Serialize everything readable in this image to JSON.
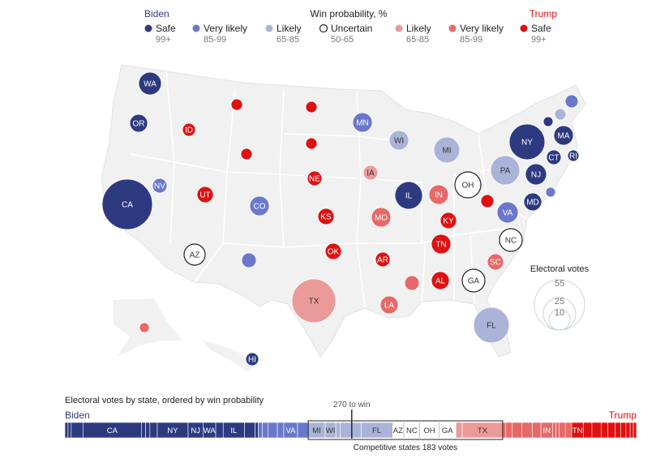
{
  "legend": {
    "biden_label": "Biden",
    "title": "Win probability, %",
    "trump_label": "Trump",
    "items": [
      {
        "label": "Safe",
        "range": "99+",
        "cat": "safe_b"
      },
      {
        "label": "Very likely",
        "range": "85-99",
        "cat": "vlikely_b"
      },
      {
        "label": "Likely",
        "range": "65-85",
        "cat": "likely_b"
      },
      {
        "label": "Uncertain",
        "range": "50-65",
        "cat": "uncertain"
      },
      {
        "label": "Likely",
        "range": "65-85",
        "cat": "likely_t"
      },
      {
        "label": "Very likely",
        "range": "85-99",
        "cat": "vlikely_t"
      },
      {
        "label": "Safe",
        "range": "99+",
        "cat": "safe_t"
      }
    ]
  },
  "colors": {
    "safe_b": "#2e3a80",
    "vlikely_b": "#6a78cc",
    "likely_b": "#aab4d8",
    "uncertain": "#ffffff",
    "likely_t": "#eb9a9a",
    "vlikely_t": "#e86868",
    "safe_t": "#e01010",
    "biden_text": "#2e3a80",
    "trump_text": "#e01010",
    "map_fill": "#f1f1f1"
  },
  "size_legend": {
    "title": "Electoral votes",
    "values": [
      "55",
      "25",
      "10"
    ]
  },
  "states": [
    {
      "abbr": "WA",
      "label": "WA",
      "cat": "safe_b"
    },
    {
      "abbr": "OR",
      "label": "OR",
      "cat": "safe_b"
    },
    {
      "abbr": "CA",
      "label": "CA",
      "cat": "safe_b"
    },
    {
      "abbr": "NV",
      "label": "NV",
      "cat": "vlikely_b"
    },
    {
      "abbr": "ID",
      "label": "ID",
      "cat": "safe_t"
    },
    {
      "abbr": "MT",
      "label": "",
      "cat": "safe_t"
    },
    {
      "abbr": "WY",
      "label": "",
      "cat": "safe_t"
    },
    {
      "abbr": "UT",
      "label": "UT",
      "cat": "safe_t"
    },
    {
      "abbr": "CO",
      "label": "CO",
      "cat": "vlikely_b"
    },
    {
      "abbr": "AZ",
      "label": "AZ",
      "cat": "uncertain"
    },
    {
      "abbr": "NM",
      "label": "",
      "cat": "vlikely_b"
    },
    {
      "abbr": "ND",
      "label": "",
      "cat": "safe_t"
    },
    {
      "abbr": "SD",
      "label": "",
      "cat": "safe_t"
    },
    {
      "abbr": "NE",
      "label": "NE",
      "cat": "safe_t"
    },
    {
      "abbr": "KS",
      "label": "KS",
      "cat": "safe_t"
    },
    {
      "abbr": "OK",
      "label": "OK",
      "cat": "safe_t"
    },
    {
      "abbr": "TX",
      "label": "TX",
      "cat": "likely_t"
    },
    {
      "abbr": "MN",
      "label": "MN",
      "cat": "vlikely_b"
    },
    {
      "abbr": "IA",
      "label": "IA",
      "cat": "likely_t"
    },
    {
      "abbr": "MO",
      "label": "MO",
      "cat": "vlikely_t"
    },
    {
      "abbr": "AR",
      "label": "AR",
      "cat": "safe_t"
    },
    {
      "abbr": "LA",
      "label": "LA",
      "cat": "vlikely_t"
    },
    {
      "abbr": "WI",
      "label": "WI",
      "cat": "likely_b"
    },
    {
      "abbr": "IL",
      "label": "IL",
      "cat": "safe_b"
    },
    {
      "abbr": "MI",
      "label": "MI",
      "cat": "likely_b"
    },
    {
      "abbr": "IN",
      "label": "IN",
      "cat": "vlikely_t"
    },
    {
      "abbr": "OH",
      "label": "OH",
      "cat": "uncertain"
    },
    {
      "abbr": "KY",
      "label": "KY",
      "cat": "safe_t"
    },
    {
      "abbr": "TN",
      "label": "TN",
      "cat": "safe_t"
    },
    {
      "abbr": "MS",
      "label": "",
      "cat": "vlikely_t"
    },
    {
      "abbr": "AL",
      "label": "AL",
      "cat": "safe_t"
    },
    {
      "abbr": "GA",
      "label": "GA",
      "cat": "uncertain"
    },
    {
      "abbr": "FL",
      "label": "FL",
      "cat": "likely_b"
    },
    {
      "abbr": "SC",
      "label": "SC",
      "cat": "vlikely_t"
    },
    {
      "abbr": "NC",
      "label": "NC",
      "cat": "uncertain"
    },
    {
      "abbr": "WV",
      "label": "",
      "cat": "safe_t"
    },
    {
      "abbr": "VA",
      "label": "VA",
      "cat": "vlikely_b"
    },
    {
      "abbr": "PA",
      "label": "PA",
      "cat": "likely_b"
    },
    {
      "abbr": "NY",
      "label": "NY",
      "cat": "safe_b"
    },
    {
      "abbr": "NJ",
      "label": "NJ",
      "cat": "safe_b"
    },
    {
      "abbr": "MD",
      "label": "MD",
      "cat": "safe_b"
    },
    {
      "abbr": "DE",
      "label": "",
      "cat": "vlikely_b"
    },
    {
      "abbr": "CT",
      "label": "CT",
      "cat": "safe_b"
    },
    {
      "abbr": "RI",
      "label": "RI",
      "cat": "safe_b"
    },
    {
      "abbr": "MA",
      "label": "MA",
      "cat": "safe_b"
    },
    {
      "abbr": "VT",
      "label": "",
      "cat": "safe_b"
    },
    {
      "abbr": "NH",
      "label": "",
      "cat": "likely_b"
    },
    {
      "abbr": "ME",
      "label": "",
      "cat": "vlikely_b"
    },
    {
      "abbr": "AK",
      "label": "",
      "cat": "vlikely_t"
    },
    {
      "abbr": "HI",
      "label": "HI",
      "cat": "safe_b"
    }
  ],
  "bar": {
    "title": "Electoral votes by state, ordered by win probability",
    "biden_label": "Biden",
    "trump_label": "Trump",
    "threshold_label": "270 to win",
    "threshold": 270,
    "total": 538,
    "competitive_label": "Competitive states 183 votes",
    "segments": [
      {
        "label": "",
        "ev": 3,
        "cat": "safe_b"
      },
      {
        "label": "",
        "ev": 3,
        "cat": "safe_b"
      },
      {
        "label": "",
        "ev": 11,
        "cat": "safe_b"
      },
      {
        "label": "CA",
        "ev": 55,
        "cat": "safe_b"
      },
      {
        "label": "",
        "ev": 4,
        "cat": "safe_b"
      },
      {
        "label": "",
        "ev": 4,
        "cat": "safe_b"
      },
      {
        "label": "",
        "ev": 7,
        "cat": "safe_b"
      },
      {
        "label": "NY",
        "ev": 29,
        "cat": "safe_b"
      },
      {
        "label": "NJ",
        "ev": 14,
        "cat": "safe_b"
      },
      {
        "label": "WA",
        "ev": 12,
        "cat": "safe_b"
      },
      {
        "label": "",
        "ev": 7,
        "cat": "safe_b"
      },
      {
        "label": "IL",
        "ev": 20,
        "cat": "safe_b"
      },
      {
        "label": "",
        "ev": 10,
        "cat": "safe_b"
      },
      {
        "label": "",
        "ev": 3,
        "cat": "safe_b"
      },
      {
        "label": "",
        "ev": 4,
        "cat": "vlikely_b"
      },
      {
        "label": "",
        "ev": 5,
        "cat": "vlikely_b"
      },
      {
        "label": "",
        "ev": 9,
        "cat": "vlikely_b"
      },
      {
        "label": "",
        "ev": 6,
        "cat": "vlikely_b"
      },
      {
        "label": "VA",
        "ev": 13,
        "cat": "vlikely_b"
      },
      {
        "label": "",
        "ev": 10,
        "cat": "vlikely_b"
      },
      {
        "label": "MI",
        "ev": 16,
        "cat": "likely_b"
      },
      {
        "label": "WI",
        "ev": 10,
        "cat": "likely_b"
      },
      {
        "label": "",
        "ev": 4,
        "cat": "likely_b"
      },
      {
        "label": "",
        "ev": 20,
        "cat": "likely_b"
      },
      {
        "label": "FL",
        "ev": 29,
        "cat": "likely_b"
      },
      {
        "label": "AZ",
        "ev": 11,
        "cat": "uncertain"
      },
      {
        "label": "NC",
        "ev": 15,
        "cat": "uncertain"
      },
      {
        "label": "OH",
        "ev": 18,
        "cat": "uncertain"
      },
      {
        "label": "GA",
        "ev": 16,
        "cat": "uncertain"
      },
      {
        "label": "",
        "ev": 6,
        "cat": "likely_t"
      },
      {
        "label": "TX",
        "ev": 38,
        "cat": "likely_t"
      },
      {
        "label": "",
        "ev": 3,
        "cat": "vlikely_t"
      },
      {
        "label": "",
        "ev": 6,
        "cat": "vlikely_t"
      },
      {
        "label": "",
        "ev": 9,
        "cat": "vlikely_t"
      },
      {
        "label": "",
        "ev": 10,
        "cat": "vlikely_t"
      },
      {
        "label": "",
        "ev": 8,
        "cat": "vlikely_t"
      },
      {
        "label": "IN",
        "ev": 11,
        "cat": "vlikely_t"
      },
      {
        "label": "",
        "ev": 3,
        "cat": "vlikely_t"
      },
      {
        "label": "",
        "ev": 3,
        "cat": "vlikely_t"
      },
      {
        "label": "",
        "ev": 6,
        "cat": "vlikely_t"
      },
      {
        "label": "",
        "ev": 6,
        "cat": "vlikely_t"
      },
      {
        "label": "TN",
        "ev": 11,
        "cat": "safe_t"
      },
      {
        "label": "",
        "ev": 8,
        "cat": "safe_t"
      },
      {
        "label": "",
        "ev": 9,
        "cat": "safe_t"
      },
      {
        "label": "",
        "ev": 6,
        "cat": "safe_t"
      },
      {
        "label": "",
        "ev": 7,
        "cat": "safe_t"
      },
      {
        "label": "",
        "ev": 5,
        "cat": "safe_t"
      },
      {
        "label": "",
        "ev": 5,
        "cat": "safe_t"
      },
      {
        "label": "",
        "ev": 4,
        "cat": "safe_t"
      },
      {
        "label": "",
        "ev": 3,
        "cat": "safe_t"
      },
      {
        "label": "",
        "ev": 3,
        "cat": "safe_t"
      }
    ],
    "competitive_from": 20,
    "competitive_to": 30
  }
}
